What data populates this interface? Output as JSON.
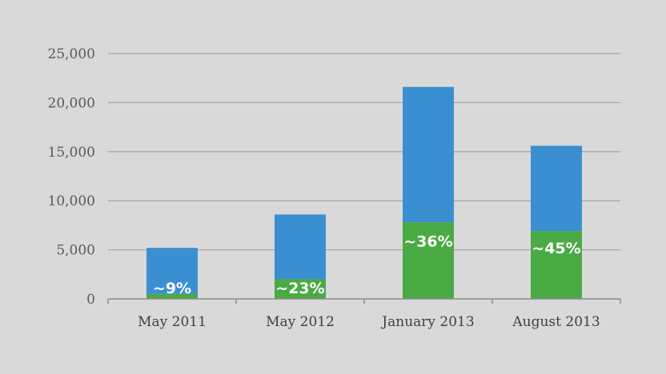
{
  "chart_data": {
    "type": "bar",
    "stacked": true,
    "categories": [
      "May 2011",
      "May 2012",
      "January 2013",
      "August 2013"
    ],
    "series": [
      {
        "values": [
          500,
          2000,
          7800,
          6900
        ],
        "color": "#4aaa43"
      },
      {
        "values": [
          4700,
          6600,
          13800,
          8700
        ],
        "color": "#3a8fd0"
      }
    ],
    "data_labels": [
      "~9%",
      "~23%",
      "~36%",
      "~45%"
    ],
    "y_ticks": [
      "0",
      "5,000",
      "10,000",
      "15,000",
      "20,000",
      "25,000"
    ],
    "y_tick_values": [
      0,
      5000,
      10000,
      15000,
      20000,
      25000
    ],
    "ylim": [
      0,
      25000
    ],
    "grid": true,
    "legend": "none",
    "title": "",
    "xlabel": "",
    "ylabel": "",
    "colors": {
      "background": "#d9d9d9",
      "grid": "#a6a6a6",
      "axis": "#8c8c8c"
    }
  }
}
